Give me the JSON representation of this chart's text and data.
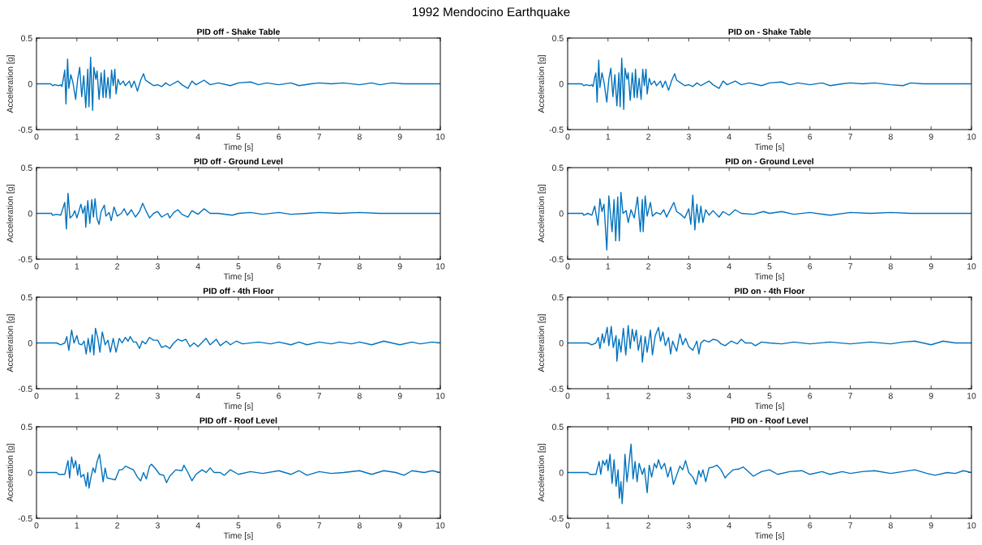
{
  "chart_data": [
    {
      "type": "line",
      "title": "PID off - Shake Table",
      "xlabel": "Time [s]",
      "ylabel": "Acceleration [g]",
      "annotations": [
        "1992 Mendocino Earthquake"
      ],
      "xlim": [
        0,
        10
      ],
      "ylim": [
        -0.5,
        0.5
      ],
      "xticks": [
        0,
        1,
        2,
        3,
        4,
        5,
        6,
        7,
        8,
        9,
        10
      ],
      "yticks": [
        -0.5,
        0,
        0.5
      ],
      "grid": false,
      "series": [
        {
          "color": "#0072bd",
          "x": [
            0,
            0.35,
            0.4,
            0.45,
            0.55,
            0.6,
            0.63,
            0.67,
            0.7,
            0.73,
            0.77,
            0.8,
            0.85,
            0.9,
            0.97,
            1.02,
            1.07,
            1.12,
            1.17,
            1.22,
            1.27,
            1.3,
            1.34,
            1.39,
            1.42,
            1.47,
            1.5,
            1.55,
            1.6,
            1.65,
            1.68,
            1.72,
            1.77,
            1.82,
            1.86,
            1.9,
            1.94,
            1.97,
            2.02,
            2.07,
            2.15,
            2.2,
            2.3,
            2.35,
            2.42,
            2.5,
            2.58,
            2.65,
            2.7,
            2.8,
            2.9,
            3.0,
            3.1,
            3.2,
            3.3,
            3.5,
            3.6,
            3.75,
            3.85,
            3.95,
            4.15,
            4.3,
            4.5,
            4.8,
            5.0,
            5.3,
            5.5,
            5.7,
            6.0,
            6.3,
            6.5,
            6.8,
            7.0,
            7.3,
            7.6,
            8.0,
            8.3,
            8.5,
            8.8,
            9.1,
            10
          ],
          "values": [
            0,
            0,
            -0.02,
            -0.01,
            -0.02,
            -0.01,
            -0.03,
            0.07,
            0.15,
            -0.22,
            0.27,
            -0.05,
            0.1,
            0.02,
            -0.17,
            0.05,
            0.18,
            -0.14,
            0.09,
            -0.26,
            0.16,
            -0.25,
            0.29,
            -0.29,
            0.18,
            0.05,
            0.14,
            -0.17,
            0.12,
            -0.15,
            0.15,
            -0.15,
            0.07,
            -0.16,
            0.15,
            -0.02,
            0.16,
            -0.11,
            0.05,
            -0.01,
            0.03,
            -0.02,
            0.03,
            -0.04,
            0.03,
            -0.08,
            0.04,
            0.11,
            0.04,
            0.01,
            -0.02,
            -0.01,
            -0.03,
            0.01,
            -0.02,
            0.03,
            -0.01,
            -0.05,
            0.03,
            -0.01,
            0.04,
            -0.01,
            0.01,
            -0.02,
            0.01,
            0.02,
            -0.01,
            0.01,
            -0.01,
            0.01,
            -0.02,
            0,
            0.01,
            0,
            0.01,
            -0.01,
            0.01,
            -0.01,
            0.01,
            0,
            0
          ]
        }
      ]
    },
    {
      "type": "line",
      "title": "PID on - Shake Table",
      "xlabel": "Time [s]",
      "ylabel": "Acceleration [g]",
      "xlim": [
        0,
        10
      ],
      "ylim": [
        -0.5,
        0.5
      ],
      "xticks": [
        0,
        1,
        2,
        3,
        4,
        5,
        6,
        7,
        8,
        9,
        10
      ],
      "yticks": [
        -0.5,
        0,
        0.5
      ],
      "grid": false,
      "series": [
        {
          "color": "#0072bd",
          "x": [
            0,
            0.35,
            0.4,
            0.45,
            0.55,
            0.6,
            0.63,
            0.67,
            0.7,
            0.73,
            0.77,
            0.8,
            0.85,
            0.9,
            0.97,
            1.02,
            1.07,
            1.12,
            1.17,
            1.22,
            1.27,
            1.3,
            1.34,
            1.39,
            1.42,
            1.47,
            1.5,
            1.55,
            1.6,
            1.65,
            1.68,
            1.72,
            1.77,
            1.82,
            1.86,
            1.9,
            1.94,
            1.97,
            2.02,
            2.07,
            2.15,
            2.2,
            2.3,
            2.35,
            2.42,
            2.5,
            2.58,
            2.65,
            2.7,
            2.8,
            2.9,
            3.0,
            3.1,
            3.2,
            3.3,
            3.5,
            3.6,
            3.75,
            3.85,
            3.95,
            4.15,
            4.3,
            4.5,
            4.8,
            5.0,
            5.3,
            5.5,
            5.7,
            6.0,
            6.3,
            6.5,
            6.8,
            7.0,
            7.3,
            7.6,
            8.0,
            8.3,
            8.5,
            8.8,
            9.1,
            10
          ],
          "values": [
            0,
            0,
            -0.02,
            -0.01,
            -0.02,
            -0.01,
            -0.03,
            0.07,
            0.12,
            -0.2,
            0.26,
            -0.04,
            0.12,
            0.02,
            -0.2,
            0.05,
            0.17,
            -0.14,
            0.1,
            -0.24,
            0.12,
            -0.25,
            0.28,
            -0.28,
            0.17,
            0.05,
            0.12,
            -0.18,
            0.12,
            -0.15,
            0.16,
            -0.15,
            0.06,
            -0.17,
            0.16,
            -0.02,
            0.16,
            -0.11,
            0.06,
            -0.01,
            0.03,
            -0.02,
            0.03,
            -0.04,
            0.03,
            -0.07,
            0.04,
            0.11,
            0.04,
            0.01,
            -0.02,
            -0.01,
            -0.03,
            0.01,
            -0.02,
            0.03,
            -0.01,
            -0.05,
            0.03,
            -0.01,
            0.03,
            -0.01,
            0.01,
            -0.02,
            0.01,
            0.02,
            -0.01,
            0.01,
            -0.01,
            0.01,
            -0.02,
            0,
            0.01,
            0,
            0.01,
            -0.01,
            -0.02,
            0.01,
            0,
            0,
            0
          ]
        }
      ]
    },
    {
      "type": "line",
      "title": "PID off - Ground Level",
      "xlabel": "Time [s]",
      "ylabel": "Acceleration [g]",
      "xlim": [
        0,
        10
      ],
      "ylim": [
        -0.5,
        0.5
      ],
      "xticks": [
        0,
        1,
        2,
        3,
        4,
        5,
        6,
        7,
        8,
        9,
        10
      ],
      "yticks": [
        -0.5,
        0,
        0.5
      ],
      "grid": false,
      "series": [
        {
          "color": "#0072bd",
          "x": [
            0,
            0.37,
            0.4,
            0.5,
            0.6,
            0.65,
            0.7,
            0.74,
            0.78,
            0.83,
            0.9,
            0.95,
            1.0,
            1.1,
            1.15,
            1.2,
            1.22,
            1.27,
            1.32,
            1.37,
            1.41,
            1.45,
            1.5,
            1.55,
            1.6,
            1.68,
            1.72,
            1.8,
            1.85,
            1.92,
            2.0,
            2.1,
            2.17,
            2.25,
            2.35,
            2.45,
            2.55,
            2.63,
            2.7,
            2.8,
            2.9,
            3.0,
            3.1,
            3.25,
            3.3,
            3.4,
            3.5,
            3.6,
            3.75,
            3.85,
            4.0,
            4.15,
            4.3,
            4.5,
            4.85,
            5.0,
            5.3,
            5.6,
            6.0,
            6.3,
            6.7,
            7.0,
            7.5,
            8.0,
            8.5,
            9.1,
            10
          ],
          "values": [
            0,
            0,
            -0.02,
            -0.01,
            -0.02,
            0.05,
            0.12,
            -0.17,
            0.22,
            -0.05,
            -0.02,
            0.03,
            -0.05,
            0.1,
            0,
            0.08,
            -0.15,
            0.14,
            -0.11,
            0.15,
            -0.04,
            0.16,
            -0.06,
            -0.12,
            0.02,
            0.09,
            -0.03,
            0.01,
            -0.08,
            0.07,
            -0.03,
            0,
            0.05,
            -0.02,
            0.04,
            -0.04,
            0.02,
            0.11,
            0.04,
            -0.05,
            0,
            0.02,
            -0.04,
            0,
            -0.05,
            0.01,
            0.04,
            -0.01,
            -0.04,
            0.03,
            -0.01,
            0.05,
            0,
            0,
            -0.02,
            0,
            0.01,
            -0.01,
            0.01,
            -0.01,
            0,
            0.01,
            0,
            0.01,
            0,
            0,
            0
          ]
        }
      ]
    },
    {
      "type": "line",
      "title": "PID on - Ground Level",
      "xlabel": "Time [s]",
      "ylabel": "Acceleration [g]",
      "xlim": [
        0,
        10
      ],
      "ylim": [
        -0.5,
        0.5
      ],
      "xticks": [
        0,
        1,
        2,
        3,
        4,
        5,
        6,
        7,
        8,
        9,
        10
      ],
      "yticks": [
        -0.5,
        0,
        0.5
      ],
      "grid": false,
      "series": [
        {
          "color": "#0072bd",
          "x": [
            0,
            0.37,
            0.4,
            0.5,
            0.6,
            0.67,
            0.75,
            0.8,
            0.85,
            0.9,
            0.97,
            1.02,
            1.06,
            1.1,
            1.15,
            1.19,
            1.24,
            1.28,
            1.32,
            1.37,
            1.45,
            1.5,
            1.57,
            1.65,
            1.73,
            1.8,
            1.85,
            1.87,
            1.92,
            1.97,
            2.05,
            2.1,
            2.2,
            2.3,
            2.38,
            2.45,
            2.55,
            2.63,
            2.7,
            2.8,
            2.9,
            3.0,
            3.05,
            3.1,
            3.15,
            3.2,
            3.25,
            3.3,
            3.35,
            3.42,
            3.5,
            3.6,
            3.75,
            3.85,
            4.0,
            4.15,
            4.3,
            4.6,
            4.85,
            5.0,
            5.3,
            5.6,
            6.0,
            6.5,
            7.0,
            7.5,
            8.0,
            8.5,
            9.0,
            9.2,
            10
          ],
          "values": [
            0,
            0,
            -0.02,
            0,
            -0.02,
            0.08,
            -0.13,
            0.16,
            0.02,
            0.1,
            -0.4,
            0.19,
            0,
            -0.2,
            0.15,
            -0.3,
            0.18,
            -0.3,
            0.23,
            0,
            0.03,
            -0.1,
            0.04,
            -0.05,
            0.18,
            -0.2,
            0.15,
            -0.2,
            0.19,
            -0.03,
            0.12,
            -0.03,
            0.01,
            -0.01,
            0.04,
            -0.04,
            0.05,
            0.12,
            0.02,
            -0.01,
            -0.05,
            0.05,
            -0.12,
            0.2,
            -0.18,
            0.1,
            -0.1,
            0.08,
            -0.1,
            0.04,
            -0.02,
            0.03,
            -0.04,
            0.02,
            -0.02,
            0.04,
            0,
            -0.01,
            0.02,
            0,
            0.02,
            -0.01,
            0.01,
            -0.02,
            0.01,
            0,
            0.01,
            0,
            0,
            0,
            0
          ]
        }
      ]
    },
    {
      "type": "line",
      "title": "PID off - 4th Floor",
      "xlabel": "Time [s]",
      "ylabel": "Acceleration [g]",
      "xlim": [
        0,
        10
      ],
      "ylim": [
        -0.5,
        0.5
      ],
      "xticks": [
        0,
        1,
        2,
        3,
        4,
        5,
        6,
        7,
        8,
        9,
        10
      ],
      "yticks": [
        -0.5,
        0,
        0.5
      ],
      "grid": false,
      "series": [
        {
          "color": "#0072bd",
          "x": [
            0,
            0.4,
            0.5,
            0.6,
            0.7,
            0.75,
            0.8,
            0.87,
            0.93,
            1.0,
            1.05,
            1.12,
            1.18,
            1.23,
            1.28,
            1.33,
            1.38,
            1.42,
            1.46,
            1.52,
            1.57,
            1.63,
            1.7,
            1.77,
            1.83,
            1.9,
            1.97,
            2.05,
            2.12,
            2.2,
            2.27,
            2.32,
            2.4,
            2.47,
            2.55,
            2.62,
            2.7,
            2.8,
            2.9,
            3.0,
            3.1,
            3.2,
            3.3,
            3.4,
            3.5,
            3.6,
            3.7,
            3.8,
            3.9,
            4.0,
            4.2,
            4.3,
            4.45,
            4.55,
            4.7,
            4.8,
            4.95,
            5.1,
            5.5,
            5.8,
            6.0,
            6.3,
            6.5,
            6.7,
            7.0,
            7.3,
            7.5,
            7.8,
            8.0,
            8.3,
            8.6,
            8.8,
            9.0,
            9.3,
            9.5,
            9.8,
            10
          ],
          "values": [
            0,
            0,
            0,
            -0.02,
            0,
            0.07,
            -0.08,
            0.14,
            0,
            0.08,
            -0.01,
            -0.02,
            0.02,
            -0.12,
            0.05,
            -0.1,
            0.09,
            -0.13,
            0.16,
            0.05,
            -0.1,
            0.12,
            -0.02,
            0.03,
            -0.1,
            0.05,
            -0.1,
            0.05,
            0,
            0.06,
            0.02,
            0.07,
            0.01,
            0.01,
            -0.06,
            0.02,
            -0.01,
            0.06,
            0.03,
            0.03,
            -0.05,
            -0.03,
            -0.06,
            0,
            0.04,
            0.02,
            0.04,
            -0.04,
            0,
            -0.04,
            0.05,
            -0.02,
            0.04,
            -0.03,
            0.02,
            -0.02,
            0.02,
            -0.01,
            0.01,
            -0.01,
            0.01,
            -0.02,
            0.01,
            -0.02,
            0.01,
            -0.01,
            0.01,
            -0.01,
            0.01,
            -0.02,
            0.02,
            0,
            -0.02,
            0.01,
            -0.01,
            0.01,
            0
          ]
        }
      ]
    },
    {
      "type": "line",
      "title": "PID on - 4th Floor",
      "xlabel": "Time [s]",
      "ylabel": "Acceleration [g]",
      "xlim": [
        0,
        10
      ],
      "ylim": [
        -0.5,
        0.5
      ],
      "xticks": [
        0,
        1,
        2,
        3,
        4,
        5,
        6,
        7,
        8,
        9,
        10
      ],
      "yticks": [
        -0.5,
        0,
        0.5
      ],
      "grid": false,
      "series": [
        {
          "color": "#0072bd",
          "x": [
            0,
            0.4,
            0.5,
            0.6,
            0.7,
            0.76,
            0.8,
            0.86,
            0.9,
            0.98,
            1.02,
            1.08,
            1.13,
            1.2,
            1.22,
            1.27,
            1.32,
            1.38,
            1.44,
            1.5,
            1.55,
            1.6,
            1.65,
            1.7,
            1.75,
            1.82,
            1.85,
            1.92,
            1.97,
            2.05,
            2.1,
            2.17,
            2.25,
            2.3,
            2.36,
            2.42,
            2.5,
            2.55,
            2.6,
            2.7,
            2.78,
            2.85,
            2.92,
            3.0,
            3.1,
            3.2,
            3.25,
            3.3,
            3.38,
            3.5,
            3.6,
            3.7,
            3.8,
            3.9,
            4.05,
            4.2,
            4.3,
            4.4,
            4.55,
            4.65,
            4.8,
            5.0,
            5.3,
            5.6,
            6.0,
            6.5,
            7.0,
            7.5,
            8.0,
            8.3,
            8.6,
            9.0,
            9.3,
            9.6,
            10
          ],
          "values": [
            0,
            0,
            0,
            -0.02,
            0,
            0.06,
            -0.06,
            0.1,
            0,
            0.17,
            -0.03,
            0.18,
            -0.05,
            0.08,
            -0.2,
            0.04,
            -0.1,
            0.16,
            -0.13,
            0.19,
            -0.06,
            0.15,
            0.02,
            0.14,
            -0.08,
            0.08,
            -0.21,
            0.07,
            -0.1,
            0.14,
            -0.13,
            0.08,
            0.17,
            0.02,
            0.12,
            -0.03,
            0.06,
            -0.12,
            0.02,
            -0.09,
            0.1,
            -0.02,
            0.05,
            -0.04,
            -0.08,
            0.02,
            -0.12,
            0,
            0.03,
            0.01,
            0.04,
            0.03,
            -0.01,
            -0.03,
            0.02,
            -0.01,
            0.04,
            0,
            0,
            -0.03,
            0.01,
            0,
            -0.01,
            0.01,
            -0.01,
            0.01,
            -0.01,
            0.01,
            -0.01,
            0.01,
            0.02,
            -0.02,
            0.02,
            0,
            0
          ]
        }
      ]
    },
    {
      "type": "line",
      "title": "PID off - Roof Level",
      "xlabel": "Time [s]",
      "ylabel": "Acceleration [g]",
      "xlim": [
        0,
        10
      ],
      "ylim": [
        -0.5,
        0.5
      ],
      "xticks": [
        0,
        1,
        2,
        3,
        4,
        5,
        6,
        7,
        8,
        9,
        10
      ],
      "yticks": [
        -0.5,
        0,
        0.5
      ],
      "grid": false,
      "series": [
        {
          "color": "#0072bd",
          "x": [
            0,
            0.45,
            0.5,
            0.55,
            0.7,
            0.78,
            0.82,
            0.87,
            0.92,
            0.97,
            1.02,
            1.06,
            1.1,
            1.17,
            1.23,
            1.27,
            1.3,
            1.35,
            1.4,
            1.45,
            1.5,
            1.56,
            1.6,
            1.65,
            1.7,
            1.75,
            1.85,
            1.95,
            2.05,
            2.12,
            2.2,
            2.3,
            2.4,
            2.5,
            2.58,
            2.65,
            2.72,
            2.8,
            2.85,
            2.95,
            3.05,
            3.15,
            3.22,
            3.3,
            3.45,
            3.6,
            3.65,
            3.75,
            3.85,
            3.95,
            4.1,
            4.2,
            4.3,
            4.4,
            4.55,
            4.65,
            4.8,
            5.0,
            5.3,
            5.6,
            6.0,
            6.3,
            6.5,
            6.7,
            7.0,
            7.3,
            7.6,
            8.0,
            8.3,
            8.6,
            8.9,
            9.1,
            9.3,
            9.6,
            9.8,
            10
          ],
          "values": [
            0,
            0,
            0,
            -0.02,
            -0.02,
            0.13,
            -0.06,
            0.17,
            0.05,
            0.13,
            -0.03,
            0.09,
            -0.05,
            -0.02,
            -0.15,
            0,
            -0.17,
            -0.05,
            0.05,
            0,
            0.12,
            0.2,
            0.07,
            -0.1,
            0.05,
            -0.06,
            -0.07,
            -0.08,
            0.03,
            0.03,
            0.07,
            0.05,
            0.03,
            -0.05,
            -0.09,
            0,
            -0.07,
            0.07,
            0.09,
            0.04,
            -0.02,
            -0.03,
            -0.11,
            -0.04,
            0.03,
            0.02,
            0.08,
            0,
            -0.09,
            -0.02,
            0.03,
            0,
            0.05,
            0,
            0,
            -0.03,
            0.03,
            -0.02,
            0.01,
            -0.01,
            0.02,
            -0.02,
            0.02,
            -0.03,
            0.01,
            -0.01,
            0,
            0.02,
            -0.02,
            0.02,
            0,
            -0.03,
            0.02,
            0,
            0.02,
            0
          ]
        }
      ]
    },
    {
      "type": "line",
      "title": "PID on - Roof Level",
      "xlabel": "Time [s]",
      "ylabel": "Acceleration [g]",
      "xlim": [
        0,
        10
      ],
      "ylim": [
        -0.5,
        0.5
      ],
      "xticks": [
        0,
        1,
        2,
        3,
        4,
        5,
        6,
        7,
        8,
        9,
        10
      ],
      "yticks": [
        -0.5,
        0,
        0.5
      ],
      "grid": false,
      "series": [
        {
          "color": "#0072bd",
          "x": [
            0,
            0.45,
            0.5,
            0.55,
            0.7,
            0.78,
            0.82,
            0.87,
            0.92,
            0.97,
            1.0,
            1.05,
            1.1,
            1.15,
            1.2,
            1.25,
            1.28,
            1.32,
            1.35,
            1.4,
            1.42,
            1.47,
            1.52,
            1.57,
            1.62,
            1.67,
            1.72,
            1.77,
            1.85,
            1.9,
            1.97,
            2.02,
            2.08,
            2.15,
            2.2,
            2.25,
            2.32,
            2.4,
            2.48,
            2.55,
            2.62,
            2.7,
            2.78,
            2.85,
            2.92,
            3.0,
            3.1,
            3.18,
            3.25,
            3.3,
            3.35,
            3.42,
            3.5,
            3.6,
            3.7,
            3.8,
            3.9,
            3.95,
            4.1,
            4.25,
            4.35,
            4.5,
            4.6,
            4.8,
            5.0,
            5.2,
            5.5,
            5.8,
            6.0,
            6.3,
            6.5,
            6.8,
            7.0,
            7.3,
            7.6,
            8.0,
            8.3,
            8.6,
            8.9,
            9.1,
            9.4,
            9.6,
            9.8,
            10
          ],
          "values": [
            0,
            0,
            0,
            -0.02,
            -0.02,
            0.12,
            -0.02,
            0.13,
            0.08,
            0.14,
            0.02,
            0.2,
            -0.12,
            0.14,
            -0.15,
            0.03,
            -0.28,
            -0.1,
            -0.34,
            0,
            0.2,
            -0.1,
            0.1,
            0.31,
            -0.07,
            0.12,
            -0.1,
            0.1,
            -0.02,
            0.05,
            -0.22,
            0.08,
            -0.05,
            0.1,
            0.05,
            0.14,
            0.04,
            0.1,
            -0.05,
            0.06,
            -0.13,
            -0.03,
            0.07,
            0.03,
            0.13,
            0,
            -0.05,
            -0.13,
            0.02,
            -0.05,
            0.03,
            -0.1,
            0.05,
            0.06,
            0.08,
            0.03,
            -0.06,
            -0.03,
            0.03,
            0.04,
            0.06,
            0,
            -0.04,
            0.01,
            0.03,
            -0.02,
            0.01,
            0.02,
            -0.02,
            0.01,
            -0.02,
            0.01,
            -0.01,
            0.01,
            0.02,
            -0.01,
            0.01,
            0.03,
            -0.01,
            -0.03,
            0,
            -0.01,
            0.02,
            0
          ]
        }
      ]
    }
  ]
}
